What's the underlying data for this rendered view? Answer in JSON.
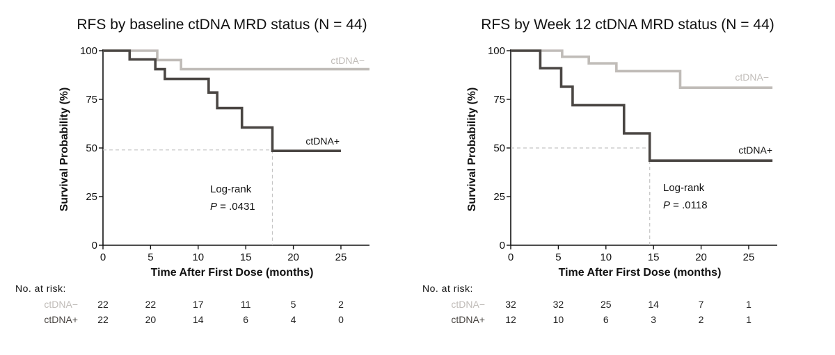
{
  "colors": {
    "neg": "#c0bcb8",
    "pos": "#4a4643",
    "axis": "#111111",
    "ref": "#c4c4c4"
  },
  "chart_data": [
    {
      "type": "line",
      "title": "RFS by baseline ctDNA MRD status (N = 44)",
      "xlabel": "Time After First Dose (months)",
      "ylabel": "Survival Probability (%)",
      "xlim": [
        0,
        28
      ],
      "ylim": [
        0,
        100
      ],
      "xticks": [
        "0",
        "5",
        "10",
        "15",
        "20",
        "25"
      ],
      "yticks": [
        "0",
        "25",
        "50",
        "75",
        "100"
      ],
      "series": [
        {
          "name": "ctDNA−",
          "label": "ctDNA−",
          "steps": [
            [
              0,
              100
            ],
            [
              5.7,
              95.2
            ],
            [
              8.2,
              90.5
            ],
            [
              28,
              90.5
            ]
          ]
        },
        {
          "name": "ctDNA+",
          "label": "ctDNA+",
          "steps": [
            [
              0,
              100
            ],
            [
              2.8,
              95.5
            ],
            [
              5.5,
              90.5
            ],
            [
              6.5,
              85.5
            ],
            [
              11.1,
              78.5
            ],
            [
              12,
              70.5
            ],
            [
              14.6,
              60.5
            ],
            [
              17.8,
              48.5
            ],
            [
              25,
              48.5
            ]
          ]
        }
      ],
      "median_reference": {
        "y": 49,
        "x": 17.8
      },
      "annotation": {
        "line1": "Log-rank",
        "p_label": "P",
        "p_value": " = .0431"
      },
      "risk_table": {
        "title": "No. at risk:",
        "rows": [
          {
            "label": "ctDNA−",
            "values": [
              "22",
              "22",
              "17",
              "11",
              "5",
              "2"
            ]
          },
          {
            "label": "ctDNA+",
            "values": [
              "22",
              "20",
              "14",
              "6",
              "4",
              "0"
            ]
          }
        ]
      }
    },
    {
      "type": "line",
      "title": "RFS by Week 12 ctDNA MRD status (N = 44)",
      "xlabel": "Time After First Dose (months)",
      "ylabel": "Survival Probability (%)",
      "xlim": [
        0,
        28
      ],
      "ylim": [
        0,
        100
      ],
      "xticks": [
        "0",
        "5",
        "10",
        "15",
        "20",
        "25"
      ],
      "yticks": [
        "0",
        "25",
        "50",
        "75",
        "100"
      ],
      "series": [
        {
          "name": "ctDNA−",
          "label": "ctDNA−",
          "steps": [
            [
              0,
              100
            ],
            [
              5.4,
              96.9
            ],
            [
              8.2,
              93.5
            ],
            [
              11.1,
              89.5
            ],
            [
              17.8,
              81
            ],
            [
              27.5,
              81
            ]
          ]
        },
        {
          "name": "ctDNA+",
          "label": "ctDNA+",
          "steps": [
            [
              0,
              100
            ],
            [
              3.1,
              91
            ],
            [
              5.3,
              81.5
            ],
            [
              6.5,
              72
            ],
            [
              11.9,
              57.5
            ],
            [
              14.6,
              43.5
            ],
            [
              27.5,
              43.5
            ]
          ]
        }
      ],
      "median_reference": {
        "y": 50,
        "x": 14.6
      },
      "annotation": {
        "line1": "Log-rank",
        "p_label": "P",
        "p_value": " = .0118"
      },
      "risk_table": {
        "title": "No. at risk:",
        "rows": [
          {
            "label": "ctDNA−",
            "values": [
              "32",
              "32",
              "25",
              "14",
              "7",
              "1"
            ]
          },
          {
            "label": "ctDNA+",
            "values": [
              "12",
              "10",
              "6",
              "3",
              "2",
              "1"
            ]
          }
        ]
      }
    }
  ]
}
